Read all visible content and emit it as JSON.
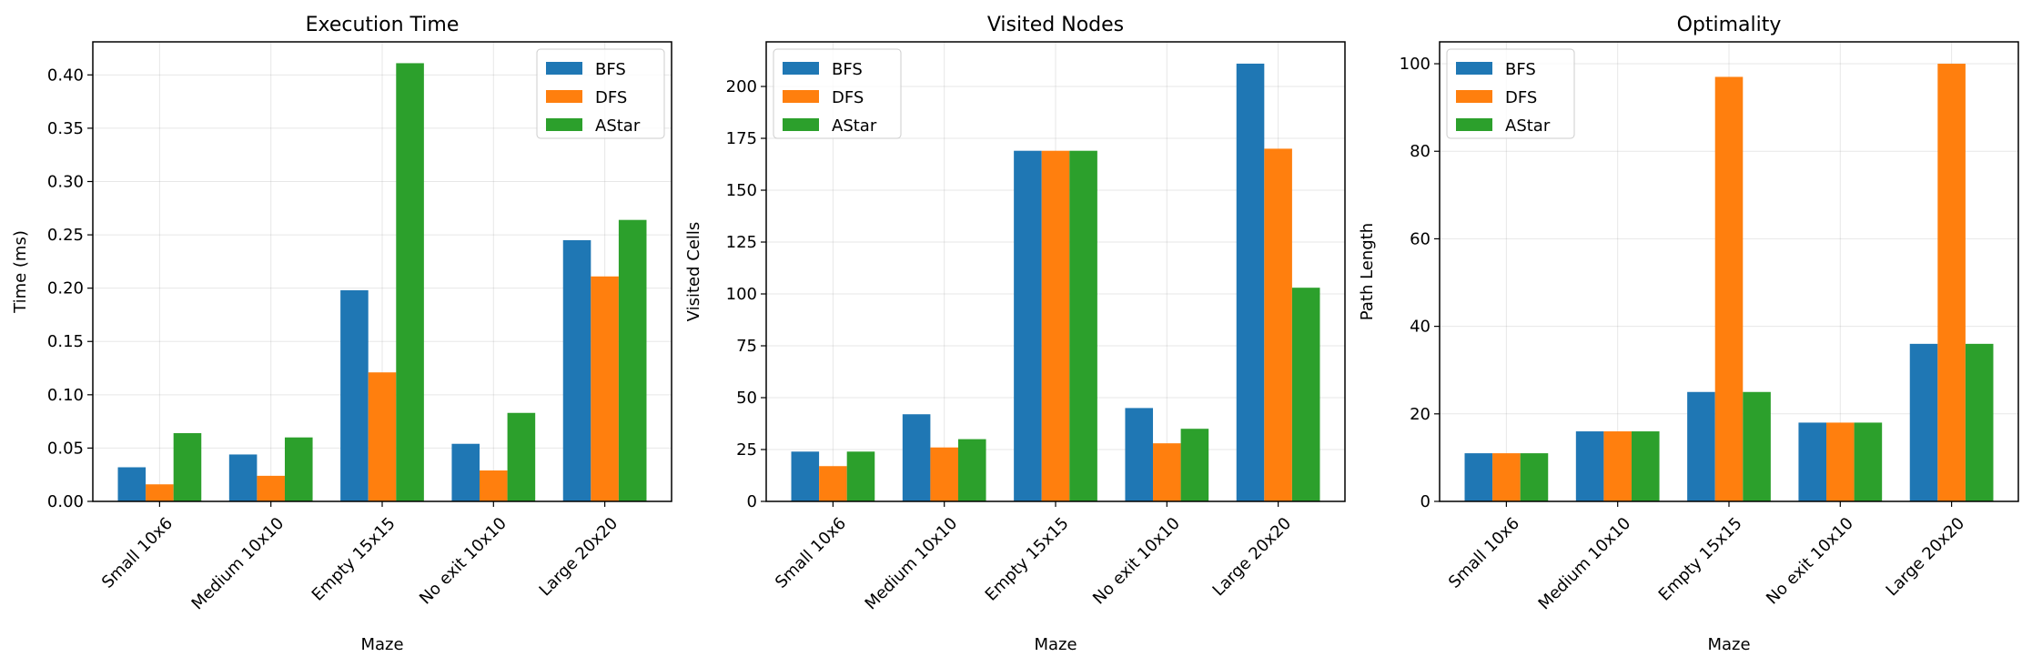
{
  "figure": {
    "legend_placement": [
      "top-right",
      "top-left",
      "top-left"
    ],
    "grid": true
  },
  "chart_data": [
    {
      "type": "bar",
      "title": "Execution Time",
      "xlabel": "Maze",
      "ylabel": "Time (ms)",
      "categories": [
        "Small 10x6",
        "Medium 10x10",
        "Empty 15x15",
        "No exit 10x10",
        "Large 20x20"
      ],
      "series": [
        {
          "name": "BFS",
          "color": "#1f77b4",
          "values": [
            0.032,
            0.044,
            0.198,
            0.054,
            0.245
          ]
        },
        {
          "name": "DFS",
          "color": "#ff7f0e",
          "values": [
            0.016,
            0.024,
            0.121,
            0.029,
            0.211
          ]
        },
        {
          "name": "AStar",
          "color": "#2ca02c",
          "values": [
            0.064,
            0.06,
            0.411,
            0.083,
            0.264
          ]
        }
      ],
      "ylim": [
        0,
        0.431
      ],
      "yticks": [
        0.0,
        0.05,
        0.1,
        0.15,
        0.2,
        0.25,
        0.3,
        0.35,
        0.4
      ],
      "yticklabels": [
        "0.00",
        "0.05",
        "0.10",
        "0.15",
        "0.20",
        "0.25",
        "0.30",
        "0.35",
        "0.40"
      ],
      "legend": "top-right"
    },
    {
      "type": "bar",
      "title": "Visited Nodes",
      "xlabel": "Maze",
      "ylabel": "Visited Cells",
      "categories": [
        "Small 10x6",
        "Medium 10x10",
        "Empty 15x15",
        "No exit 10x10",
        "Large 20x20"
      ],
      "series": [
        {
          "name": "BFS",
          "color": "#1f77b4",
          "values": [
            24,
            42,
            169,
            45,
            211
          ]
        },
        {
          "name": "DFS",
          "color": "#ff7f0e",
          "values": [
            17,
            26,
            169,
            28,
            170
          ]
        },
        {
          "name": "AStar",
          "color": "#2ca02c",
          "values": [
            24,
            30,
            169,
            35,
            103
          ]
        }
      ],
      "ylim": [
        0,
        221.5
      ],
      "yticks": [
        0,
        25,
        50,
        75,
        100,
        125,
        150,
        175,
        200
      ],
      "yticklabels": [
        "0",
        "25",
        "50",
        "75",
        "100",
        "125",
        "150",
        "175",
        "200"
      ],
      "legend": "top-left"
    },
    {
      "type": "bar",
      "title": "Optimality",
      "xlabel": "Maze",
      "ylabel": "Path Length",
      "categories": [
        "Small 10x6",
        "Medium 10x10",
        "Empty 15x15",
        "No exit 10x10",
        "Large 20x20"
      ],
      "series": [
        {
          "name": "BFS",
          "color": "#1f77b4",
          "values": [
            11,
            16,
            25,
            18,
            36
          ]
        },
        {
          "name": "DFS",
          "color": "#ff7f0e",
          "values": [
            11,
            16,
            97,
            18,
            100
          ]
        },
        {
          "name": "AStar",
          "color": "#2ca02c",
          "values": [
            11,
            16,
            25,
            18,
            36
          ]
        }
      ],
      "ylim": [
        0,
        105
      ],
      "yticks": [
        0,
        20,
        40,
        60,
        80,
        100
      ],
      "yticklabels": [
        "0",
        "20",
        "40",
        "60",
        "80",
        "100"
      ],
      "legend": "top-left"
    }
  ]
}
